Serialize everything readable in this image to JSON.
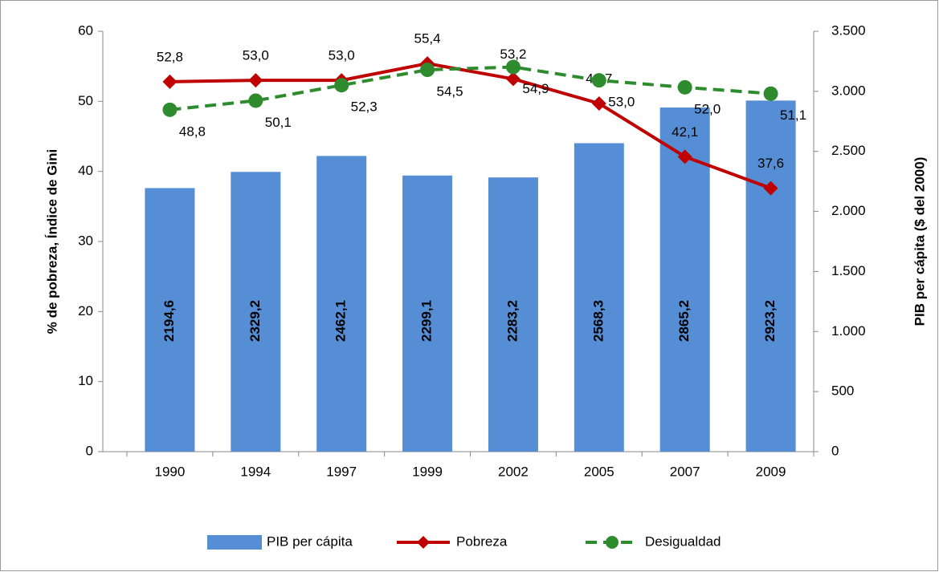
{
  "chart_data": {
    "type": "bar",
    "categories": [
      "1990",
      "1994",
      "1997",
      "1999",
      "2002",
      "2005",
      "2007",
      "2009"
    ],
    "y_label": "% de pobreza, Índice de Gini",
    "y2_label": "PIB per cápita ($ del 2000)",
    "ylim": [
      0,
      60
    ],
    "yticks": [
      0,
      10,
      20,
      30,
      40,
      50,
      60
    ],
    "y2lim": [
      0,
      3500
    ],
    "y2ticks": [
      0,
      500,
      {
        "value": 1000,
        "label": "1.000"
      },
      {
        "value": 1500,
        "label": "1.500"
      },
      {
        "value": 2000,
        "label": "2.000"
      },
      {
        "value": 2500,
        "label": "2.500"
      },
      {
        "value": 3000,
        "label": "3.000"
      },
      {
        "value": 3500,
        "label": "3.500"
      }
    ],
    "legend": "bottom",
    "series": [
      {
        "name": "PIB per cápita",
        "type": "bar",
        "axis": "y2",
        "color": "#558ed5",
        "values": [
          2194.6,
          2329.2,
          2462.1,
          2299.1,
          2283.2,
          2568.3,
          2865.2,
          2923.2
        ],
        "value_labels": [
          "2194,6",
          "2329,2",
          "2462,1",
          "2299,1",
          "2283,2",
          "2568,3",
          "2865,2",
          "2923,2"
        ]
      },
      {
        "name": "Pobreza",
        "type": "line",
        "marker": "diamond",
        "dashed": false,
        "color": "#c00000",
        "values": [
          52.8,
          53.0,
          53.0,
          55.4,
          53.2,
          49.7,
          42.1,
          37.6
        ],
        "value_labels": [
          "52,8",
          "53,0",
          "53,0",
          "55,4",
          "53,2",
          "49,7",
          "42,1",
          "37,6"
        ]
      },
      {
        "name": "Desigualdad",
        "type": "line",
        "marker": "circle",
        "dashed": true,
        "color": "#2e8b2e",
        "values": [
          48.8,
          50.1,
          52.3,
          54.5,
          54.9,
          53.0,
          52.0,
          51.1
        ],
        "value_labels": [
          "48,8",
          "50,1",
          "52,3",
          "54,5",
          "54,9",
          "53,0",
          "52,0",
          "51,1"
        ]
      }
    ]
  }
}
